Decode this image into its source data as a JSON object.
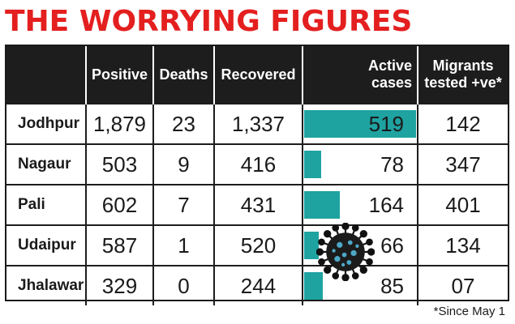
{
  "title": "THE WORRYING FIGURES",
  "headers": {
    "district": "",
    "positive": "Positive",
    "deaths": "Deaths",
    "recovered": "Recovered",
    "active_line1": "Active",
    "active_line2": "cases",
    "migrants_line1": "Migrants",
    "migrants_line2": "tested +ve*"
  },
  "rows": [
    {
      "district": "Jodhpur",
      "positive": "1,879",
      "deaths": "23",
      "recovered": "1,337",
      "active": "519",
      "migrants": "142"
    },
    {
      "district": "Nagaur",
      "positive": "503",
      "deaths": "9",
      "recovered": "416",
      "active": "78",
      "migrants": "347"
    },
    {
      "district": "Pali",
      "positive": "602",
      "deaths": "7",
      "recovered": "431",
      "active": "164",
      "migrants": "401"
    },
    {
      "district": "Udaipur",
      "positive": "587",
      "deaths": "1",
      "recovered": "520",
      "active": "66",
      "migrants": "134"
    },
    {
      "district": "Jhalawar",
      "positive": "329",
      "deaths": "0",
      "recovered": "244",
      "active": "85",
      "migrants": "07"
    }
  ],
  "footnote": "*Since May 1",
  "colors": {
    "title": "#e41f1f",
    "header_bg": "#1d1d1d",
    "bar": "#1ea3a1"
  },
  "icons": [
    "virus-icon"
  ],
  "chart_data": {
    "type": "table",
    "title": "THE WORRYING FIGURES",
    "columns": [
      "",
      "Positive",
      "Deaths",
      "Recovered",
      "Active cases",
      "Migrants tested +ve*"
    ],
    "categories": [
      "Jodhpur",
      "Nagaur",
      "Pali",
      "Udaipur",
      "Jhalawar"
    ],
    "series": [
      {
        "name": "Positive",
        "values": [
          1879,
          503,
          602,
          587,
          329
        ]
      },
      {
        "name": "Deaths",
        "values": [
          23,
          9,
          7,
          1,
          0
        ]
      },
      {
        "name": "Recovered",
        "values": [
          1337,
          416,
          431,
          520,
          244
        ]
      },
      {
        "name": "Active cases",
        "values": [
          519,
          78,
          164,
          66,
          85
        ]
      },
      {
        "name": "Migrants tested +ve*",
        "values": [
          142,
          347,
          401,
          134,
          7
        ]
      }
    ],
    "bar_column": "Active cases",
    "note": "*Since May 1"
  }
}
